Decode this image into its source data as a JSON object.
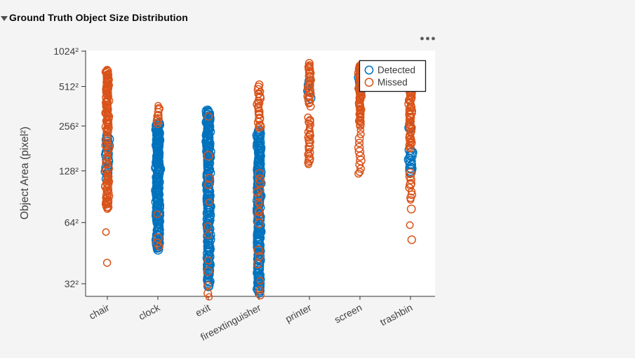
{
  "header": {
    "title": "Ground Truth Object Size Distribution",
    "caret_icon": "triangle-down-collapse"
  },
  "toolbar": {
    "options_icon": "ellipsis-menu"
  },
  "colors": {
    "page_background": "#f4f4f4",
    "plot_background": "#ffffff",
    "axis": "#333333",
    "detected": "#0072BD",
    "missed": "#D95319"
  },
  "chart_data": {
    "type": "scatter",
    "title": "Ground Truth Object Size Distribution",
    "xlabel": "",
    "ylabel": "Object Area  (pixel²)",
    "categories": [
      "chair",
      "clock",
      "exit",
      "fireextinguisher",
      "printer",
      "screen",
      "trashbin"
    ],
    "ytick_labels": [
      "32²",
      "64²",
      "128²",
      "256²",
      "512²",
      "1024²"
    ],
    "ytick_side_values": [
      32,
      64,
      128,
      256,
      512,
      1024
    ],
    "ylim_side_values": [
      28,
      1024
    ],
    "yscale": "double-log (position proportional to log of log2 of object side length)",
    "grid": false,
    "legend": {
      "position": "northeast",
      "items": [
        {
          "label": "Detected",
          "color": "#0072BD",
          "marker": "circle-outline"
        },
        {
          "label": "Missed",
          "color": "#D95319",
          "marker": "circle-outline"
        }
      ]
    },
    "series_meta": [
      {
        "name": "Detected",
        "color": "#0072BD",
        "marker_radius": 6.3
      },
      {
        "name": "Missed",
        "color": "#D95319",
        "marker_radius": 5.3
      }
    ],
    "points_note": "values are object side lengths in pixels (area = side²); clusters are [minSide, maxSide, count] read from the plotted column extents",
    "points": [
      {
        "category": "chair",
        "series": "Detected",
        "clusters": [
          [
            112,
            225,
            24
          ]
        ],
        "outliers": []
      },
      {
        "category": "clock",
        "series": "Detected",
        "clusters": [
          [
            46,
            270,
            150
          ]
        ],
        "outliers": []
      },
      {
        "category": "exit",
        "series": "Detected",
        "clusters": [
          [
            31,
            336,
            175
          ]
        ],
        "outliers": []
      },
      {
        "category": "fireextinguisher",
        "series": "Detected",
        "clusters": [
          [
            29,
            240,
            165
          ]
        ],
        "outliers": []
      },
      {
        "category": "printer",
        "series": "Detected",
        "clusters": [
          [
            414,
            572,
            5
          ]
        ],
        "outliers": []
      },
      {
        "category": "screen",
        "series": "Detected",
        "clusters": [
          [
            470,
            650,
            6
          ]
        ],
        "outliers": []
      },
      {
        "category": "trashbin",
        "series": "Detected",
        "clusters": [
          [
            124,
            176,
            14
          ],
          [
            245,
            255,
            2
          ]
        ],
        "outliers": []
      },
      {
        "category": "chair",
        "series": "Missed",
        "clusters": [
          [
            230,
            700,
            66
          ],
          [
            122,
            218,
            16
          ],
          [
            76,
            120,
            30
          ]
        ],
        "outliers": [
          57,
          40
        ]
      },
      {
        "category": "clock",
        "series": "Missed",
        "clusters": [
          [
            262,
            366,
            9
          ]
        ],
        "outliers": [
          71,
          53,
          50,
          48
        ]
      },
      {
        "category": "exit",
        "series": "Missed",
        "clusters": [],
        "outliers": [
          300,
          160,
          115,
          105,
          83,
          61,
          55,
          41,
          36.5,
          31.5,
          29,
          28
        ]
      },
      {
        "category": "fireextinguisher",
        "series": "Missed",
        "clusters": [
          [
            241,
            536,
            22
          ],
          [
            62,
            124,
            12
          ]
        ],
        "outliers": [
          46,
          43,
          39.5,
          33,
          30,
          28.5
        ]
      },
      {
        "category": "printer",
        "series": "Missed",
        "clusters": [
          [
            357,
            815,
            26
          ],
          [
            137,
            298,
            24
          ]
        ],
        "outliers": []
      },
      {
        "category": "screen",
        "series": "Missed",
        "clusters": [
          [
            255,
            780,
            55
          ]
        ],
        "outliers": [
          240,
          224,
          209,
          195,
          181,
          170,
          159,
          149,
          140,
          132,
          126,
          123
        ]
      },
      {
        "category": "trashbin",
        "series": "Missed",
        "clusters": [
          [
            176,
            750,
            62
          ],
          [
            84,
            124,
            10
          ]
        ],
        "outliers": [
          76,
          62,
          52
        ]
      }
    ]
  }
}
